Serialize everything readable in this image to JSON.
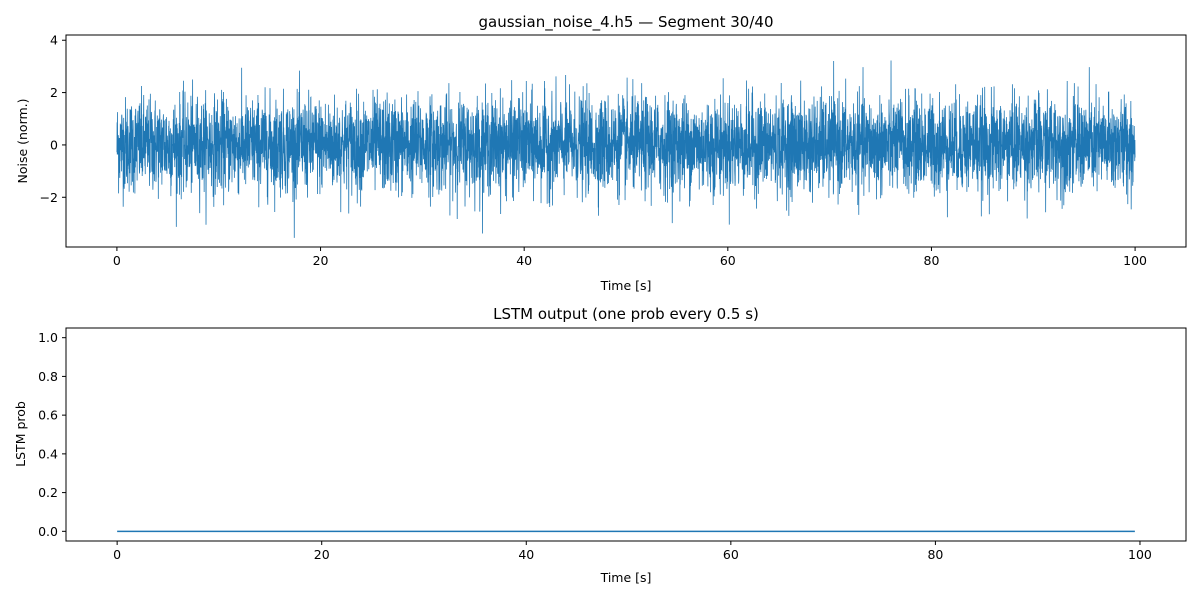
{
  "chart_data": [
    {
      "type": "line",
      "title": "gaussian_noise_4.h5 — Segment 30/40",
      "xlabel": "Time [s]",
      "ylabel": "Noise (norm.)",
      "xlim": [
        -5,
        105
      ],
      "ylim": [
        -3.9,
        4.2
      ],
      "xticks": [
        0,
        20,
        40,
        60,
        80,
        100
      ],
      "xtick_labels": [
        "0",
        "20",
        "40",
        "60",
        "80",
        "100"
      ],
      "yticks": [
        -2,
        0,
        2,
        4
      ],
      "ytick_labels": [
        "−2",
        "0",
        "2",
        "4"
      ],
      "grid": false,
      "series": [
        {
          "color": "#1f77b4",
          "description_note_excluded": true,
          "x_range": [
            0,
            100
          ],
          "y_mean": 0.0,
          "y_std": 0.9,
          "y_min": -3.55,
          "y_max": 3.95
        }
      ]
    },
    {
      "type": "line",
      "title": "LSTM output (one prob every 0.5 s)",
      "xlabel": "Time [s]",
      "ylabel": "LSTM prob",
      "xlim": [
        -5,
        104.5
      ],
      "ylim": [
        -0.05,
        1.05
      ],
      "xticks": [
        0,
        20,
        40,
        60,
        80,
        100
      ],
      "xtick_labels": [
        "0",
        "20",
        "40",
        "60",
        "80",
        "100"
      ],
      "yticks": [
        0.0,
        0.2,
        0.4,
        0.6,
        0.8,
        1.0
      ],
      "ytick_labels": [
        "0.0",
        "0.2",
        "0.4",
        "0.6",
        "0.8",
        "1.0"
      ],
      "grid": false,
      "series": [
        {
          "color": "#1f77b4",
          "x": [
            0,
            99.5
          ],
          "y": [
            0.0,
            0.0
          ],
          "step_s": 0.5
        }
      ]
    }
  ]
}
